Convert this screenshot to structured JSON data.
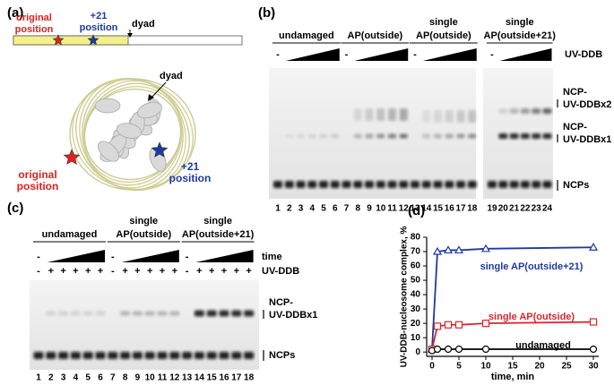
{
  "panel_a": {
    "label": "(a)",
    "top_original": [
      "original",
      "position"
    ],
    "top_plus21": [
      "+21",
      "position"
    ],
    "top_dyad": "dyad",
    "dyad": "dyad",
    "original": [
      "original",
      "position"
    ],
    "plus21": [
      "+21",
      "position"
    ]
  },
  "panel_b": {
    "label": "(b)",
    "groups": [
      [
        "undamaged"
      ],
      [
        "AP(outside)"
      ],
      [
        "single",
        "AP(outside)"
      ],
      [
        "single",
        "AP(outside+21)"
      ]
    ],
    "minus": "-",
    "reagent": "UV-DDB",
    "bands": [
      [
        "NCP-",
        "UV-DDBx2"
      ],
      [
        "NCP-",
        "UV-DDBx1"
      ],
      [
        "NCPs"
      ]
    ],
    "lanes": [
      1,
      2,
      3,
      4,
      5,
      6,
      7,
      8,
      9,
      10,
      11,
      12,
      13,
      14,
      15,
      16,
      17,
      18,
      19,
      20,
      21,
      22,
      23,
      24
    ]
  },
  "panel_c": {
    "label": "(c)",
    "groups": [
      [
        "undamaged"
      ],
      [
        "single",
        "AP(outside)"
      ],
      [
        "single",
        "AP(outside+21)"
      ]
    ],
    "time_row": [
      "-",
      "-",
      "-"
    ],
    "time": "time",
    "reagent": "UV-DDB",
    "uv_row": [
      "-",
      "+",
      "+",
      "+",
      "+",
      "+",
      "-",
      "+",
      "+",
      "+",
      "+",
      "+",
      "-",
      "+",
      "+",
      "+",
      "+",
      "+"
    ],
    "bands": [
      [
        "NCP-",
        "UV-DDBx1"
      ],
      [
        "NCPs"
      ]
    ],
    "lanes": [
      1,
      2,
      3,
      4,
      5,
      6,
      7,
      8,
      9,
      10,
      11,
      12,
      13,
      14,
      15,
      16,
      17,
      18
    ]
  },
  "chart_data": {
    "type": "line",
    "panel_label": "(d)",
    "x_label": "time, min",
    "y_label": "UV-DDB-nucleosome complex, %",
    "x": [
      0,
      1,
      3,
      5,
      10,
      30
    ],
    "xlim": [
      -1,
      31
    ],
    "xticks": [
      0,
      5,
      10,
      15,
      20,
      25,
      30
    ],
    "ylim": [
      -3,
      80
    ],
    "yticks": [
      0,
      10,
      20,
      30,
      40,
      50,
      60,
      70,
      80
    ],
    "series": [
      {
        "name": "single AP(outside+21)",
        "color": "#1f3a9e",
        "marker": "triangle",
        "values": [
          2,
          70,
          71,
          71,
          72,
          73
        ]
      },
      {
        "name": "single AP(outside)",
        "color": "#d9262b",
        "marker": "square",
        "values": [
          2,
          18,
          19,
          19,
          20,
          21
        ]
      },
      {
        "name": "undamaged",
        "color": "#000000",
        "marker": "circle",
        "values": [
          1,
          2,
          2,
          2,
          2,
          2
        ]
      }
    ]
  }
}
